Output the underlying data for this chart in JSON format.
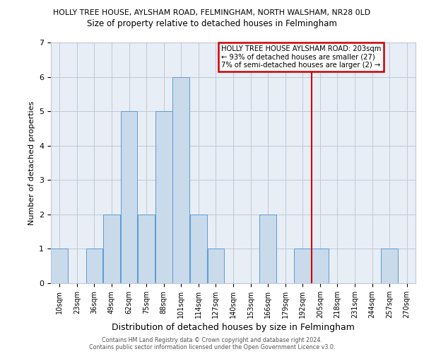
{
  "title_line1": "HOLLY TREE HOUSE, AYLSHAM ROAD, FELMINGHAM, NORTH WALSHAM, NR28 0LD",
  "title_line2": "Size of property relative to detached houses in Felmingham",
  "xlabel": "Distribution of detached houses by size in Felmingham",
  "ylabel": "Number of detached properties",
  "categories": [
    "10sqm",
    "23sqm",
    "36sqm",
    "49sqm",
    "62sqm",
    "75sqm",
    "88sqm",
    "101sqm",
    "114sqm",
    "127sqm",
    "140sqm",
    "153sqm",
    "166sqm",
    "179sqm",
    "192sqm",
    "205sqm",
    "218sqm",
    "231sqm",
    "244sqm",
    "257sqm",
    "270sqm"
  ],
  "values": [
    1,
    0,
    1,
    2,
    5,
    2,
    5,
    6,
    2,
    1,
    0,
    0,
    2,
    0,
    1,
    1,
    0,
    0,
    0,
    1,
    0
  ],
  "bar_color": "#c9daea",
  "bar_edge_color": "#5b9bd5",
  "background_color": "#e8eef5",
  "grid_color": "#c0c8d8",
  "red_line_x": 14.5,
  "annotation_text": "HOLLY TREE HOUSE AYLSHAM ROAD: 203sqm\n← 93% of detached houses are smaller (27)\n7% of semi-detached houses are larger (2) →",
  "annotation_box_color": "#ffffff",
  "annotation_border_color": "#cc0000",
  "red_line_color": "#cc0000",
  "footer_line1": "Contains HM Land Registry data © Crown copyright and database right 2024.",
  "footer_line2": "Contains public sector information licensed under the Open Government Licence v3.0.",
  "ylim": [
    0,
    7
  ],
  "yticks": [
    0,
    1,
    2,
    3,
    4,
    5,
    6,
    7
  ]
}
